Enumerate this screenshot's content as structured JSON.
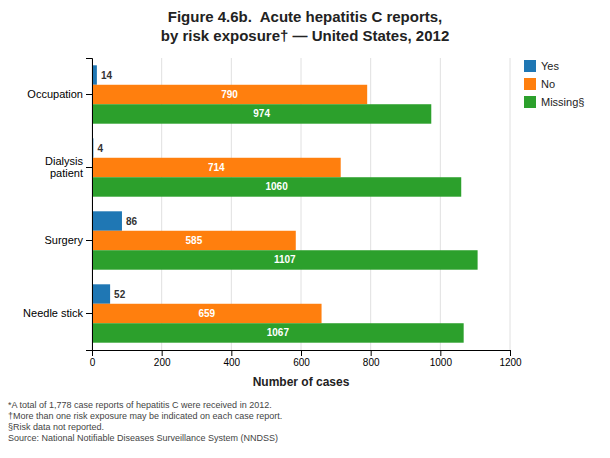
{
  "chart_data": {
    "type": "bar",
    "orientation": "horizontal",
    "title": "Figure 4.6b.  Acute hepatitis C reports,\nby risk exposure† — United States, 2012",
    "categories": [
      "Occupation",
      "Dialysis\npatient",
      "Surgery",
      "Needle stick"
    ],
    "series": [
      {
        "name": "Yes",
        "values": [
          14,
          4,
          86,
          52
        ]
      },
      {
        "name": "No",
        "values": [
          790,
          714,
          585,
          659
        ]
      },
      {
        "name": "Missing§",
        "values": [
          974,
          1060,
          1107,
          1067
        ]
      }
    ],
    "x_label": "Number of cases",
    "xlim": [
      0,
      1200
    ],
    "xticks": [
      0,
      200,
      400,
      600,
      800,
      1000,
      1200
    ],
    "grid": true,
    "legend": "upper right",
    "data_labels": true,
    "annotations": [
      "*A total of 1,778 case reports of hepatitis C were received in 2012.\n†More than one risk exposure may be indicated on each case report.\n§Risk data not reported.\nSource: National Notifiable Diseases Surveillance System (NNDSS)"
    ]
  }
}
